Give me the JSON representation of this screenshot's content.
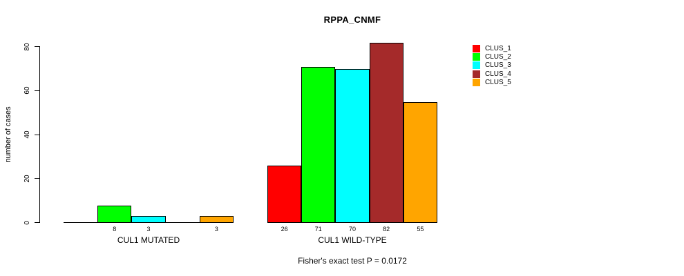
{
  "chart_data": {
    "type": "bar",
    "title": "RPPA_CNMF",
    "ylabel": "number of cases",
    "xlabel": "",
    "ylim": [
      0,
      80
    ],
    "yticks": [
      0,
      20,
      40,
      60,
      80
    ],
    "grid": false,
    "legend_position": "right",
    "groups": [
      "CUL1 MUTATED",
      "CUL1 WILD-TYPE"
    ],
    "series": [
      {
        "name": "CLUS_1",
        "color": "#FF0000",
        "values": [
          0,
          26
        ]
      },
      {
        "name": "CLUS_2",
        "color": "#00FF00",
        "values": [
          8,
          71
        ]
      },
      {
        "name": "CLUS_3",
        "color": "#00FFFF",
        "values": [
          3,
          70
        ]
      },
      {
        "name": "CLUS_4",
        "color": "#A52A2A",
        "values": [
          0,
          82
        ]
      },
      {
        "name": "CLUS_5",
        "color": "#FFA500",
        "values": [
          3,
          55
        ]
      }
    ],
    "bar_value_labels_visible": [
      "8",
      "3",
      "3",
      "26",
      "71",
      "70",
      "82",
      "55"
    ],
    "annotation": "Fisher's exact test P = 0.0172"
  },
  "colors": {
    "background": "#FFFFFF",
    "axis": "#000000",
    "text": "#000000"
  }
}
